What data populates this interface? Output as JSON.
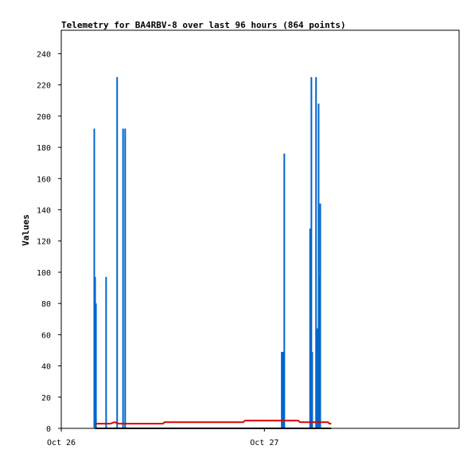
{
  "chart_data": {
    "type": "bar",
    "title": "Telemetry for BA4RBV-8 over last 96 hours (864 points)",
    "xlabel": "",
    "ylabel": "Values",
    "ylim": [
      0,
      255
    ],
    "yticks": [
      0,
      20,
      40,
      60,
      80,
      100,
      120,
      140,
      160,
      180,
      200,
      220,
      240
    ],
    "xlim": [
      0,
      47
    ],
    "x_unit": "hours from Oct 26 00:00",
    "xticks": [
      {
        "x": 0,
        "label": "Oct 26"
      },
      {
        "x": 24,
        "label": "Oct 27"
      }
    ],
    "grid": false,
    "series": [
      {
        "type": "bar",
        "color": "#0066cc",
        "points": [
          {
            "x": 3.9,
            "y": 192
          },
          {
            "x": 4.0,
            "y": 97
          },
          {
            "x": 4.1,
            "y": 80
          },
          {
            "x": 5.3,
            "y": 97
          },
          {
            "x": 6.6,
            "y": 225
          },
          {
            "x": 7.3,
            "y": 192
          },
          {
            "x": 7.55,
            "y": 192
          },
          {
            "x": 26.05,
            "y": 49
          },
          {
            "x": 26.2,
            "y": 49
          },
          {
            "x": 26.35,
            "y": 176
          },
          {
            "x": 29.4,
            "y": 128
          },
          {
            "x": 29.55,
            "y": 225
          },
          {
            "x": 29.65,
            "y": 49
          },
          {
            "x": 30.1,
            "y": 225
          },
          {
            "x": 30.25,
            "y": 64
          },
          {
            "x": 30.4,
            "y": 208
          },
          {
            "x": 30.5,
            "y": 97
          },
          {
            "x": 30.6,
            "y": 144
          }
        ]
      },
      {
        "type": "line",
        "color": "#dd0000",
        "points": [
          {
            "x": 4.0,
            "y": 3
          },
          {
            "x": 5.8,
            "y": 3
          },
          {
            "x": 6.3,
            "y": 4
          },
          {
            "x": 6.8,
            "y": 3
          },
          {
            "x": 12.0,
            "y": 3
          },
          {
            "x": 12.2,
            "y": 4
          },
          {
            "x": 21.5,
            "y": 4
          },
          {
            "x": 21.7,
            "y": 5
          },
          {
            "x": 28.0,
            "y": 5
          },
          {
            "x": 28.2,
            "y": 4
          },
          {
            "x": 31.5,
            "y": 4
          },
          {
            "x": 31.7,
            "y": 3
          },
          {
            "x": 31.9,
            "y": 3
          }
        ]
      },
      {
        "type": "line",
        "color": "#000000",
        "points": [
          {
            "x": 4.0,
            "y": 0
          },
          {
            "x": 31.9,
            "y": 0
          }
        ]
      }
    ]
  }
}
